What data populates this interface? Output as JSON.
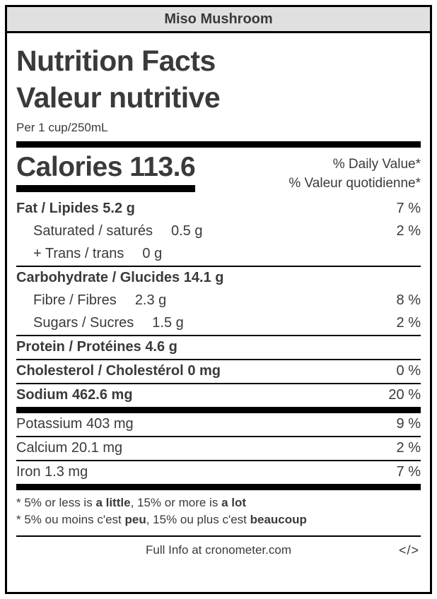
{
  "header": {
    "title": "Miso Mushroom"
  },
  "label": {
    "title_en": "Nutrition Facts",
    "title_fr": "Valeur nutritive",
    "serving": "Per 1 cup/250mL",
    "calories_label": "Calories",
    "calories_value": "113.6",
    "dv_header_en": "% Daily Value*",
    "dv_header_fr": "% Valeur quotidienne*"
  },
  "nutrients": [
    {
      "label": "Fat / Lipides",
      "amount": "5.2 g",
      "dv": "7 %"
    },
    {
      "label": "Saturated / saturés",
      "amount": "0.5 g",
      "dv": "2 %"
    },
    {
      "label": "+ Trans / trans",
      "amount": "0 g",
      "dv": ""
    },
    {
      "label": "Carbohydrate / Glucides",
      "amount": "14.1 g",
      "dv": ""
    },
    {
      "label": "Fibre / Fibres",
      "amount": "2.3 g",
      "dv": "8 %"
    },
    {
      "label": "Sugars / Sucres",
      "amount": "1.5 g",
      "dv": "2 %"
    },
    {
      "label": "Protein / Protéines",
      "amount": "4.6 g",
      "dv": ""
    },
    {
      "label": "Cholesterol / Cholestérol",
      "amount": "0 mg",
      "dv": "0 %"
    },
    {
      "label": "Sodium",
      "amount": "462.6 mg",
      "dv": "20 %"
    },
    {
      "label": "Potassium",
      "amount": "403 mg",
      "dv": "9 %"
    },
    {
      "label": "Calcium",
      "amount": "20.1 mg",
      "dv": "2 %"
    },
    {
      "label": "Iron",
      "amount": "1.3 mg",
      "dv": "7 %"
    }
  ],
  "footnotes": {
    "en": {
      "prefix": "* 5% or less is ",
      "bold1": "a little",
      "mid": ", 15% or more is ",
      "bold2": "a lot"
    },
    "fr": {
      "prefix": "* 5% ou moins c'est ",
      "bold1": "peu",
      "mid": ", 15% ou plus c'est ",
      "bold2": "beaucoup"
    }
  },
  "footer": {
    "text": "Full Info at cronometer.com",
    "embed_icon": "</>"
  },
  "colors": {
    "header_bg": "#e0e0e0",
    "text": "#3a3a3a",
    "rule": "#000000"
  }
}
